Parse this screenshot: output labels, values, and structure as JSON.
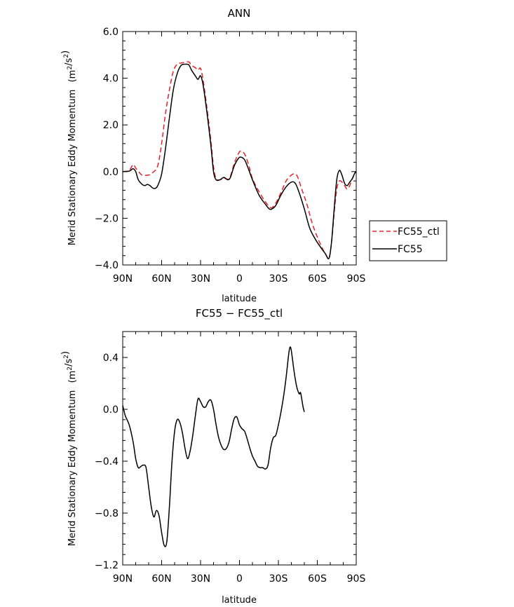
{
  "chart_data": [
    {
      "type": "line",
      "title": "ANN",
      "xlabel": "latitude",
      "ylabel": "Merid Stationary Eddy Momentum",
      "ylabel_unit": "(m²/s²)",
      "ylim": [
        -4.0,
        6.0
      ],
      "xlim": [
        90,
        -90
      ],
      "x_ticks": [
        90,
        60,
        30,
        0,
        -30,
        -60,
        -90
      ],
      "x_tick_labels": [
        "90N",
        "60N",
        "30N",
        "0",
        "30S",
        "60S",
        "90S"
      ],
      "y_ticks": [
        -4,
        -2,
        0,
        2,
        4,
        6
      ],
      "y_tick_labels": [
        "−4.0",
        "−2.0",
        "0.0",
        "2.0",
        "4.0",
        "6.0"
      ],
      "legend_position": "right",
      "grid": false,
      "series": [
        {
          "name": "FC55_ctl",
          "color": "#e8202a",
          "dash": "dashed",
          "points": [
            [
              90,
              0.0
            ],
            [
              85,
              0.05
            ],
            [
              82,
              0.3
            ],
            [
              80,
              0.15
            ],
            [
              77,
              -0.05
            ],
            [
              75,
              -0.15
            ],
            [
              70,
              -0.15
            ],
            [
              67,
              -0.05
            ],
            [
              63,
              0.25
            ],
            [
              60,
              1.2
            ],
            [
              57,
              2.5
            ],
            [
              54,
              3.5
            ],
            [
              51,
              4.3
            ],
            [
              48,
              4.6
            ],
            [
              45,
              4.65
            ],
            [
              42,
              4.68
            ],
            [
              39,
              4.7
            ],
            [
              37,
              4.55
            ],
            [
              34,
              4.45
            ],
            [
              32,
              4.35
            ],
            [
              30,
              4.42
            ],
            [
              28,
              3.9
            ],
            [
              25,
              2.7
            ],
            [
              22,
              1.3
            ],
            [
              20,
              0.2
            ],
            [
              18,
              -0.3
            ],
            [
              15,
              -0.35
            ],
            [
              12,
              -0.28
            ],
            [
              9,
              -0.33
            ],
            [
              7,
              -0.2
            ],
            [
              4,
              0.35
            ],
            [
              1,
              0.75
            ],
            [
              -1,
              0.88
            ],
            [
              -4,
              0.75
            ],
            [
              -7,
              0.3
            ],
            [
              -10,
              -0.3
            ],
            [
              -15,
              -0.85
            ],
            [
              -20,
              -1.3
            ],
            [
              -23,
              -1.5
            ],
            [
              -25,
              -1.55
            ],
            [
              -28,
              -1.35
            ],
            [
              -32,
              -0.9
            ],
            [
              -36,
              -0.4
            ],
            [
              -40,
              -0.15
            ],
            [
              -43,
              -0.1
            ],
            [
              -45,
              -0.25
            ],
            [
              -48,
              -0.75
            ],
            [
              -52,
              -1.4
            ],
            [
              -56,
              -2.2
            ],
            [
              -60,
              -2.8
            ],
            [
              -64,
              -3.3
            ],
            [
              -67,
              -3.6
            ],
            [
              -69,
              -3.72
            ],
            [
              -71,
              -3.0
            ],
            [
              -74,
              -1.2
            ],
            [
              -76,
              -0.5
            ],
            [
              -78,
              -0.4
            ],
            [
              -81,
              -0.6
            ],
            [
              -83,
              -0.75
            ],
            [
              -85,
              -0.6
            ],
            [
              -87,
              -0.3
            ],
            [
              -90,
              0.0
            ]
          ]
        },
        {
          "name": "FC55",
          "color": "#000000",
          "dash": "solid",
          "points": [
            [
              90,
              0.0
            ],
            [
              85,
              0.02
            ],
            [
              82,
              0.12
            ],
            [
              80,
              0.0
            ],
            [
              78,
              -0.35
            ],
            [
              75,
              -0.55
            ],
            [
              73,
              -0.6
            ],
            [
              71,
              -0.55
            ],
            [
              69,
              -0.6
            ],
            [
              67,
              -0.7
            ],
            [
              65,
              -0.72
            ],
            [
              63,
              -0.6
            ],
            [
              60,
              -0.1
            ],
            [
              57,
              1.0
            ],
            [
              54,
              2.3
            ],
            [
              51,
              3.5
            ],
            [
              48,
              4.2
            ],
            [
              45,
              4.55
            ],
            [
              42,
              4.6
            ],
            [
              39,
              4.57
            ],
            [
              37,
              4.35
            ],
            [
              34,
              4.1
            ],
            [
              32,
              3.95
            ],
            [
              30,
              4.1
            ],
            [
              28,
              3.7
            ],
            [
              25,
              2.5
            ],
            [
              22,
              1.1
            ],
            [
              20,
              0.0
            ],
            [
              18,
              -0.35
            ],
            [
              15,
              -0.35
            ],
            [
              12,
              -0.25
            ],
            [
              9,
              -0.35
            ],
            [
              7,
              -0.25
            ],
            [
              4,
              0.25
            ],
            [
              1,
              0.55
            ],
            [
              -1,
              0.62
            ],
            [
              -4,
              0.5
            ],
            [
              -7,
              0.1
            ],
            [
              -10,
              -0.35
            ],
            [
              -15,
              -1.0
            ],
            [
              -20,
              -1.4
            ],
            [
              -23,
              -1.6
            ],
            [
              -25,
              -1.6
            ],
            [
              -28,
              -1.45
            ],
            [
              -32,
              -1.0
            ],
            [
              -36,
              -0.65
            ],
            [
              -40,
              -0.45
            ],
            [
              -43,
              -0.5
            ],
            [
              -46,
              -0.9
            ],
            [
              -50,
              -1.6
            ],
            [
              -54,
              -2.4
            ],
            [
              -58,
              -2.85
            ],
            [
              -62,
              -3.2
            ],
            [
              -66,
              -3.5
            ],
            [
              -69,
              -3.72
            ],
            [
              -71,
              -3.0
            ],
            [
              -73,
              -1.6
            ],
            [
              -75,
              -0.35
            ],
            [
              -77,
              0.05
            ],
            [
              -79,
              -0.15
            ],
            [
              -81,
              -0.5
            ],
            [
              -83,
              -0.6
            ],
            [
              -85,
              -0.45
            ],
            [
              -87,
              -0.3
            ],
            [
              -89,
              -0.05
            ],
            [
              -90,
              0.0
            ]
          ]
        }
      ]
    },
    {
      "type": "line",
      "title": "FC55 − FC55_ctl",
      "xlabel": "latitude",
      "ylabel": "Merid Stationary Eddy Momentum",
      "ylabel_unit": "(m²/s²)",
      "ylim": [
        -1.2,
        0.6
      ],
      "xlim": [
        90,
        -90
      ],
      "x_ticks": [
        90,
        60,
        30,
        0,
        -30,
        -60,
        -90
      ],
      "x_tick_labels": [
        "90N",
        "60N",
        "30N",
        "0",
        "30S",
        "60S",
        "90S"
      ],
      "y_ticks": [
        -1.2,
        -0.8,
        -0.4,
        0.0,
        0.4
      ],
      "y_tick_labels": [
        "−1.2",
        "−0.8",
        "−0.4",
        "0.0",
        "0.4"
      ],
      "grid": false,
      "series": [
        {
          "color": "#000000",
          "dash": "solid",
          "points": [
            [
              90,
              0.03
            ],
            [
              88,
              -0.05
            ],
            [
              85,
              -0.12
            ],
            [
              82,
              -0.25
            ],
            [
              80,
              -0.38
            ],
            [
              78,
              -0.45
            ],
            [
              76,
              -0.44
            ],
            [
              74,
              -0.43
            ],
            [
              72,
              -0.45
            ],
            [
              70,
              -0.6
            ],
            [
              68,
              -0.75
            ],
            [
              66,
              -0.83
            ],
            [
              64,
              -0.78
            ],
            [
              62,
              -0.82
            ],
            [
              60,
              -0.95
            ],
            [
              58,
              -1.05
            ],
            [
              56,
              -1.02
            ],
            [
              54,
              -0.75
            ],
            [
              52,
              -0.4
            ],
            [
              50,
              -0.17
            ],
            [
              48,
              -0.08
            ],
            [
              46,
              -0.1
            ],
            [
              44,
              -0.18
            ],
            [
              42,
              -0.3
            ],
            [
              40,
              -0.38
            ],
            [
              38,
              -0.32
            ],
            [
              36,
              -0.2
            ],
            [
              34,
              -0.05
            ],
            [
              32,
              0.08
            ],
            [
              30,
              0.06
            ],
            [
              28,
              0.02
            ],
            [
              26,
              0.02
            ],
            [
              24,
              0.06
            ],
            [
              22,
              0.07
            ],
            [
              20,
              0.0
            ],
            [
              18,
              -0.12
            ],
            [
              16,
              -0.22
            ],
            [
              14,
              -0.28
            ],
            [
              12,
              -0.31
            ],
            [
              10,
              -0.3
            ],
            [
              8,
              -0.25
            ],
            [
              6,
              -0.15
            ],
            [
              4,
              -0.07
            ],
            [
              2,
              -0.06
            ],
            [
              0,
              -0.12
            ],
            [
              -2,
              -0.15
            ],
            [
              -4,
              -0.17
            ],
            [
              -6,
              -0.23
            ],
            [
              -8,
              -0.3
            ],
            [
              -10,
              -0.36
            ],
            [
              -12,
              -0.4
            ],
            [
              -14,
              -0.44
            ],
            [
              -16,
              -0.45
            ],
            [
              -18,
              -0.45
            ],
            [
              -20,
              -0.46
            ],
            [
              -22,
              -0.43
            ],
            [
              -24,
              -0.3
            ],
            [
              -26,
              -0.22
            ],
            [
              -28,
              -0.2
            ],
            [
              -30,
              -0.12
            ],
            [
              -32,
              -0.02
            ],
            [
              -34,
              0.1
            ],
            [
              -36,
              0.25
            ],
            [
              -38,
              0.43
            ],
            [
              -39,
              0.48
            ],
            [
              -40,
              0.45
            ],
            [
              -42,
              0.3
            ],
            [
              -44,
              0.18
            ],
            [
              -46,
              0.12
            ],
            [
              -47,
              0.13
            ],
            [
              -48,
              0.08
            ],
            [
              -49,
              0.02
            ],
            [
              -50,
              -0.02
            ]
          ]
        }
      ]
    }
  ]
}
